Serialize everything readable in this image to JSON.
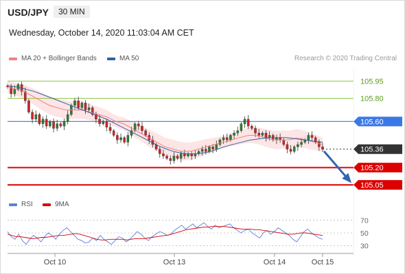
{
  "header": {
    "symbol": "USD/JPY",
    "timeframe": "30 MIN",
    "datetime": "Wednesday, October 14, 2020 11:03:04 AM CET"
  },
  "legend_main": [
    {
      "label": "MA 20 + Bollinger Bands",
      "color": "#f08080"
    },
    {
      "label": "MA 50",
      "color": "#2f5fa7"
    }
  ],
  "research_text": "Research © 2020 Trading Central",
  "legend_rsi": [
    {
      "label": "RSI",
      "color": "#5b7fd6"
    },
    {
      "label": "9MA",
      "color": "#d40000"
    }
  ],
  "colors": {
    "resistance": "#8dc63f",
    "pivot": "#3b78e7",
    "support": "#dd0000",
    "current": "#333333",
    "arrow": "#2f66b3",
    "bollinger_fill": "#fde0e0",
    "candle_up": "#2e7d32",
    "candle_down": "#c62828"
  },
  "chart_data": {
    "type": "candlestick",
    "x_tick_labels": [
      "Oct 10",
      "Oct 13",
      "Oct 14",
      "Oct 15"
    ],
    "ylim": [
      104.99,
      106.0
    ],
    "levels": [
      {
        "value": "105.95",
        "kind": "resistance"
      },
      {
        "value": "105.80",
        "kind": "resistance"
      },
      {
        "value": "105.60",
        "kind": "pivot"
      },
      {
        "value": "105.36",
        "kind": "current"
      },
      {
        "value": "105.20",
        "kind": "support"
      },
      {
        "value": "105.05",
        "kind": "support"
      }
    ],
    "close_path": [
      105.9,
      105.84,
      105.88,
      105.92,
      105.86,
      105.78,
      105.68,
      105.62,
      105.66,
      105.58,
      105.62,
      105.56,
      105.6,
      105.54,
      105.58,
      105.56,
      105.6,
      105.66,
      105.74,
      105.78,
      105.72,
      105.76,
      105.7,
      105.72,
      105.66,
      105.62,
      105.58,
      105.6,
      105.55,
      105.52,
      105.48,
      105.44,
      105.46,
      105.42,
      105.48,
      105.52,
      105.58,
      105.56,
      105.52,
      105.48,
      105.44,
      105.4,
      105.36,
      105.32,
      105.3,
      105.28,
      105.26,
      105.3,
      105.28,
      105.32,
      105.3,
      105.32,
      105.3,
      105.32,
      105.34,
      105.36,
      105.34,
      105.38,
      105.36,
      105.4,
      105.44,
      105.46,
      105.44,
      105.48,
      105.5,
      105.52,
      105.58,
      105.62,
      105.56,
      105.54,
      105.5,
      105.48,
      105.5,
      105.46,
      105.48,
      105.44,
      105.46,
      105.44,
      105.4,
      105.36,
      105.34,
      105.38,
      105.4,
      105.42,
      105.44,
      105.48,
      105.46,
      105.42,
      105.38,
      105.36
    ],
    "ma20": [
      105.9,
      105.88,
      105.86,
      105.82,
      105.78,
      105.74,
      105.72,
      105.7,
      105.7,
      105.7,
      105.68,
      105.66,
      105.64,
      105.6,
      105.58,
      105.54,
      105.5,
      105.46,
      105.42,
      105.38,
      105.36,
      105.34,
      105.34,
      105.36,
      105.38,
      105.4,
      105.42,
      105.44,
      105.46,
      105.48,
      105.48,
      105.46,
      105.44,
      105.44,
      105.44,
      105.46,
      105.44,
      105.42,
      105.4
    ],
    "ma50": [
      105.91,
      105.9,
      105.88,
      105.86,
      105.83,
      105.8,
      105.77,
      105.74,
      105.71,
      105.68,
      105.65,
      105.62,
      105.58,
      105.54,
      105.5,
      105.46,
      105.42,
      105.38,
      105.35,
      105.33,
      105.32,
      105.32,
      105.33,
      105.35,
      105.38,
      105.4,
      105.42,
      105.44,
      105.45,
      105.46,
      105.46,
      105.46,
      105.45,
      105.44,
      105.43,
      105.42
    ],
    "projection": {
      "from": 105.36,
      "to": 105.05
    },
    "rsi_ylim": [
      20,
      80
    ],
    "rsi_ticks": [
      "70",
      "50",
      "30"
    ],
    "rsi": [
      52,
      44,
      40,
      48,
      38,
      32,
      40,
      46,
      42,
      36,
      44,
      50,
      46,
      40,
      48,
      54,
      58,
      52,
      46,
      40,
      38,
      34,
      36,
      42,
      38,
      46,
      40,
      36,
      32,
      38,
      44,
      42,
      36,
      40,
      46,
      52,
      48,
      42,
      38,
      44,
      48,
      52,
      50,
      46,
      48,
      54,
      58,
      62,
      56,
      60,
      64,
      58,
      62,
      66,
      60,
      56,
      62,
      58,
      60,
      62,
      64,
      58,
      54,
      50,
      54,
      56,
      50,
      46,
      42,
      50,
      54,
      48,
      52,
      58,
      54,
      50,
      46,
      40,
      36,
      44,
      52,
      56,
      50,
      46,
      42,
      40
    ],
    "rsi_ma": [
      48,
      46,
      44,
      44,
      43,
      42,
      41,
      42,
      43,
      43,
      44,
      45,
      46,
      46,
      47,
      48,
      49,
      48,
      46,
      44,
      42,
      40,
      39,
      39,
      40,
      40,
      40,
      40,
      39,
      40,
      41,
      41,
      41,
      42,
      43,
      44,
      45,
      46,
      47,
      49,
      51,
      53,
      55,
      56,
      57,
      58,
      59,
      59,
      60,
      60,
      60,
      60,
      59,
      58,
      57,
      56,
      56,
      56,
      55,
      55,
      54,
      53,
      52,
      51,
      50,
      49,
      48,
      48,
      49,
      50,
      50,
      49,
      48,
      47,
      46
    ]
  }
}
